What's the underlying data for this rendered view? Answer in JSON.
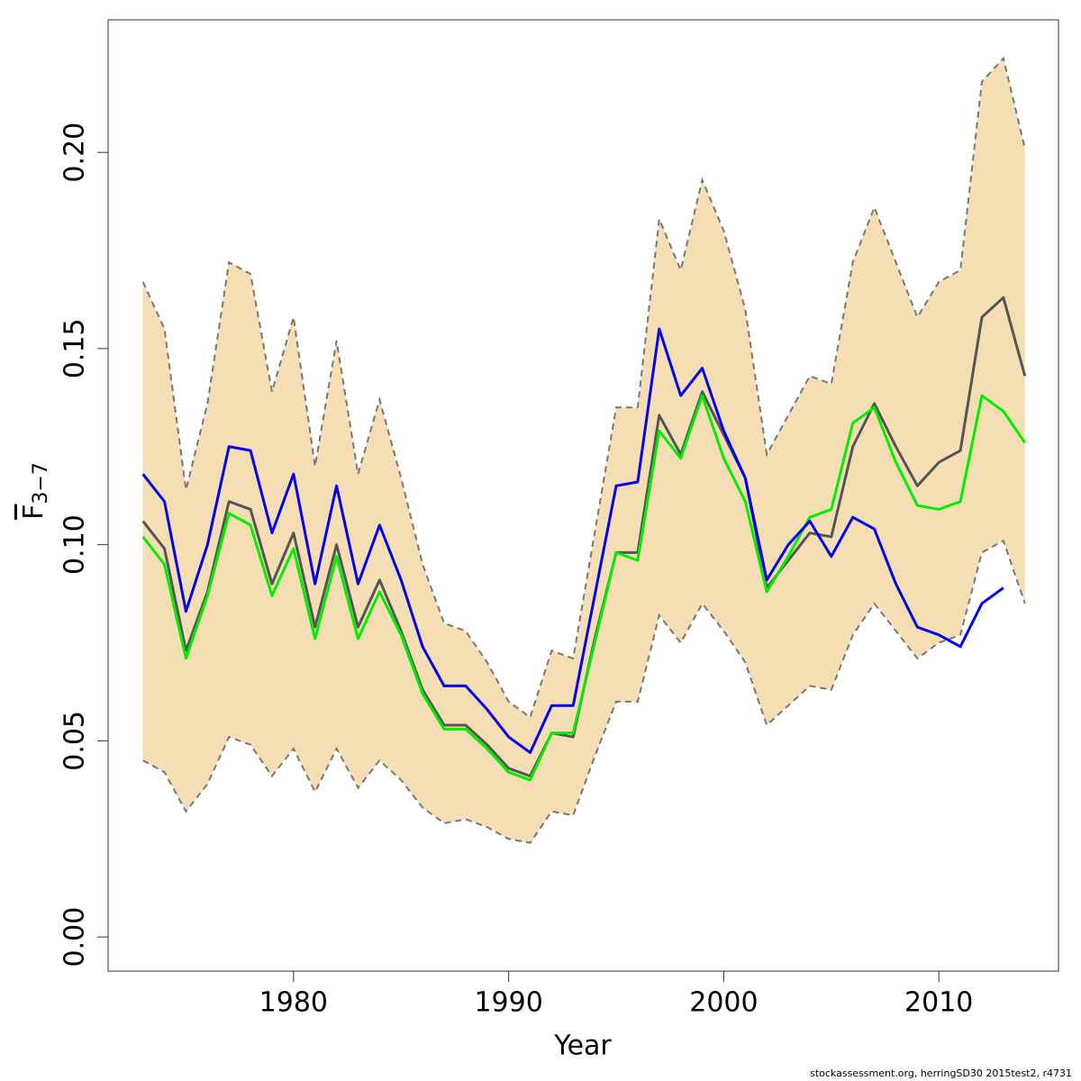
{
  "chart_data": {
    "type": "line",
    "xlabel": "Year",
    "ylabel": {
      "text": "F",
      "subscript": "3−7"
    },
    "footnote": "stockassessment.org, herringSD30 2015test2, r4731",
    "x": [
      1973,
      1974,
      1975,
      1976,
      1977,
      1978,
      1979,
      1980,
      1981,
      1982,
      1983,
      1984,
      1985,
      1986,
      1987,
      1988,
      1989,
      1990,
      1991,
      1992,
      1993,
      1994,
      1995,
      1996,
      1997,
      1998,
      1999,
      2000,
      2001,
      2002,
      2003,
      2004,
      2005,
      2006,
      2007,
      2008,
      2009,
      2010,
      2011,
      2012,
      2013,
      2014
    ],
    "band": {
      "color": "#f5deb3",
      "line_color": "#777777",
      "upper": [
        0.167,
        0.155,
        0.114,
        0.136,
        0.172,
        0.169,
        0.139,
        0.158,
        0.12,
        0.152,
        0.118,
        0.137,
        0.117,
        0.095,
        0.08,
        0.078,
        0.07,
        0.06,
        0.056,
        0.073,
        0.071,
        0.103,
        0.135,
        0.135,
        0.183,
        0.17,
        0.193,
        0.18,
        0.16,
        0.123,
        0.133,
        0.143,
        0.141,
        0.172,
        0.186,
        0.172,
        0.158,
        0.167,
        0.17,
        0.218,
        0.224,
        0.201
      ],
      "lower": [
        0.045,
        0.042,
        0.032,
        0.039,
        0.051,
        0.049,
        0.041,
        0.048,
        0.037,
        0.048,
        0.038,
        0.045,
        0.04,
        0.033,
        0.029,
        0.03,
        0.028,
        0.025,
        0.024,
        0.032,
        0.031,
        0.046,
        0.06,
        0.06,
        0.082,
        0.075,
        0.085,
        0.078,
        0.07,
        0.054,
        0.059,
        0.064,
        0.063,
        0.077,
        0.085,
        0.078,
        0.071,
        0.075,
        0.077,
        0.098,
        0.101,
        0.085
      ]
    },
    "series": [
      {
        "color": "#555555",
        "values": [
          0.106,
          0.099,
          0.073,
          0.088,
          0.111,
          0.109,
          0.09,
          0.103,
          0.079,
          0.1,
          0.079,
          0.091,
          0.078,
          0.063,
          0.054,
          0.054,
          0.049,
          0.043,
          0.041,
          0.052,
          0.051,
          0.076,
          0.098,
          0.098,
          0.133,
          0.123,
          0.139,
          0.128,
          0.117,
          0.089,
          0.096,
          0.103,
          0.102,
          0.125,
          0.136,
          0.125,
          0.115,
          0.121,
          0.124,
          0.158,
          0.163,
          0.143
        ]
      },
      {
        "color": "#00ee00",
        "values": [
          0.102,
          0.095,
          0.071,
          0.087,
          0.108,
          0.105,
          0.087,
          0.099,
          0.076,
          0.097,
          0.076,
          0.088,
          0.077,
          0.062,
          0.053,
          0.053,
          0.048,
          0.042,
          0.04,
          0.052,
          0.052,
          0.075,
          0.098,
          0.096,
          0.129,
          0.122,
          0.138,
          0.122,
          0.111,
          0.088,
          0.097,
          0.107,
          0.109,
          0.131,
          0.135,
          0.121,
          0.11,
          0.109,
          0.111,
          0.138,
          0.134,
          0.126
        ]
      },
      {
        "color": "#0000ee",
        "values": [
          0.118,
          0.111,
          0.083,
          0.1,
          0.125,
          0.124,
          0.103,
          0.118,
          0.09,
          0.115,
          0.09,
          0.105,
          0.091,
          0.074,
          0.064,
          0.064,
          0.058,
          0.051,
          0.047,
          0.059,
          0.059,
          0.087,
          0.115,
          0.116,
          0.155,
          0.138,
          0.145,
          0.129,
          0.117,
          0.091,
          0.1,
          0.106,
          0.097,
          0.107,
          0.104,
          0.09,
          0.079,
          0.077,
          0.074,
          0.085,
          0.089,
          null
        ]
      }
    ],
    "xlim": [
      1971.38,
      2015.56
    ],
    "ylim": [
      -0.0087,
      0.2338
    ],
    "xticks": [
      1980,
      1990,
      2000,
      2010
    ],
    "yticks": [
      {
        "value": 0,
        "label": "0.00"
      },
      {
        "value": 0.05,
        "label": "0.05"
      },
      {
        "value": 0.1,
        "label": "0.10"
      },
      0.15,
      {
        "value": 0.2,
        "label": "0.20"
      }
    ]
  }
}
